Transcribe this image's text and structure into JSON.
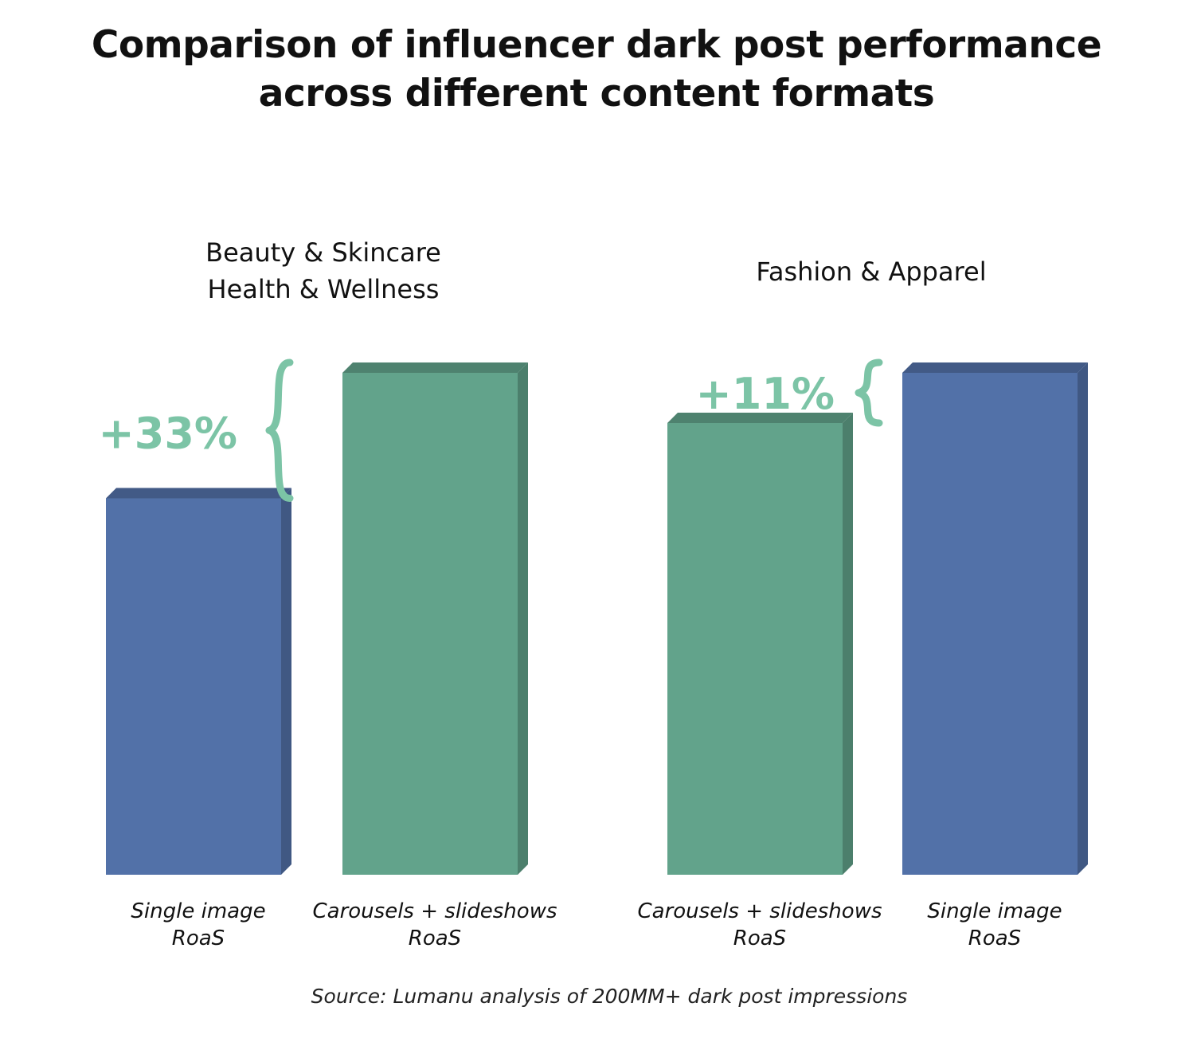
{
  "title": {
    "line1": "Comparison of influencer dark post performance",
    "line2": "across different content formats"
  },
  "source": "Source: Lumanu analysis of 200MM+ dark post impressions",
  "colors": {
    "single_image": "#5271a8",
    "carousels": "#62a38b",
    "delta": "#7cc4a6"
  },
  "chart_data": {
    "type": "bar",
    "style": "3d",
    "axes": "none",
    "grid": false,
    "ylim": [
      0,
      100
    ],
    "groups": [
      {
        "label_lines": [
          "Beauty & Skincare",
          "Health & Wellness"
        ],
        "delta_label": "+33%",
        "bars": [
          {
            "series": "single",
            "label_lines": [
              "Single image",
              "RoaS"
            ],
            "value": 75
          },
          {
            "series": "carousel",
            "label_lines": [
              "Carousels + slideshows",
              "RoaS"
            ],
            "value": 100
          }
        ]
      },
      {
        "label_lines": [
          "Fashion & Apparel"
        ],
        "delta_label": "+11%",
        "bars": [
          {
            "series": "carousel",
            "label_lines": [
              "Carousels + slideshows",
              "RoaS"
            ],
            "value": 90
          },
          {
            "series": "single",
            "label_lines": [
              "Single image",
              "RoaS"
            ],
            "value": 100
          }
        ]
      }
    ]
  }
}
